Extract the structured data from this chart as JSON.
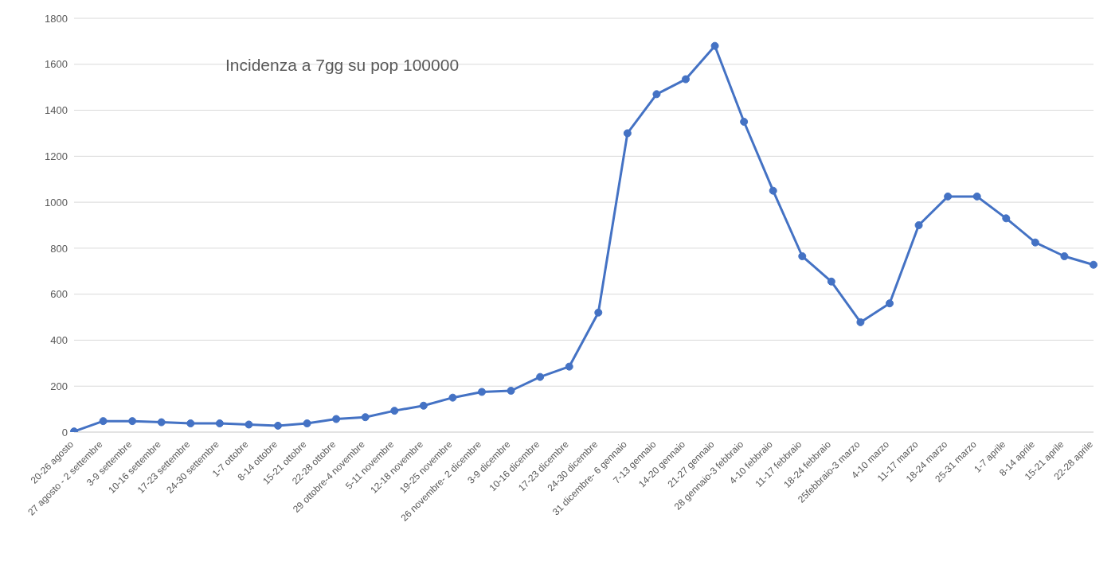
{
  "chart_data": {
    "type": "line",
    "title": "Incidenza a 7gg su pop 100000",
    "categories": [
      "20-26 agosto",
      "27 agosto - 2 settembre",
      "3-9 settembre",
      "10-16 settembre",
      "17-23 settembre",
      "24-30 settembre",
      "1-7 ottobre",
      "8-14 ottobre",
      "15-21 ottobre",
      "22-28 ottobre",
      "29 ottobre-4 novembre",
      "5-11 novembre",
      "12-18 novembre",
      "19-25 novembre",
      "26 novembre- 2 dicembre",
      "3-9 dicembre",
      "10-16 dicembre",
      "17-23 dicembre",
      "24-30 dicembre",
      "31 dicembre- 6 gennaio",
      "7-13 gennaio",
      "14-20 gennaio",
      "21-27 gennaio",
      "28 gennaio-3 febbraio",
      "4-10 febbraio",
      "11-17 febbraio",
      "18-24 febbraio",
      "25febbraio-3 marzo",
      "4-10 marzo",
      "11-17 marzo",
      "18-24 marzo",
      "25-31 marzo",
      "1-7 aprile",
      "8-14 aprile",
      "15-21 aprile",
      "22-28 aprile"
    ],
    "values": [
      3,
      48,
      48,
      43,
      38,
      38,
      33,
      28,
      38,
      57,
      65,
      93,
      115,
      150,
      175,
      180,
      240,
      285,
      520,
      1300,
      1470,
      1535,
      1680,
      1350,
      1050,
      765,
      655,
      478,
      560,
      900,
      1025,
      1025,
      930,
      825,
      765,
      728
    ],
    "color": "#4472c4",
    "marker": "circle",
    "line_style": "solid",
    "ylim": [
      0,
      1800
    ],
    "yticks": [
      0,
      200,
      400,
      600,
      800,
      1000,
      1200,
      1400,
      1600,
      1800
    ],
    "grid": "y"
  }
}
